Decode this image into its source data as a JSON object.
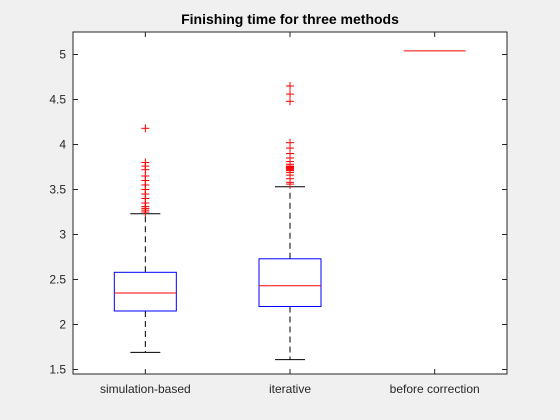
{
  "chart_data": {
    "type": "boxplot",
    "title": "Finishing time for three methods",
    "xlabel": "",
    "ylabel": "",
    "ylim": [
      1.45,
      5.25
    ],
    "grid": false,
    "yticks": [
      1.5,
      2,
      2.5,
      3,
      3.5,
      4,
      4.5,
      5
    ],
    "ytick_labels": [
      "1.5",
      "2",
      "2.5",
      "3",
      "3.5",
      "4",
      "4.5",
      "5"
    ],
    "categories": [
      "simulation-based",
      "iterative",
      "before correction"
    ],
    "boxes": [
      {
        "category": "simulation-based",
        "q1": 2.15,
        "median": 2.35,
        "q3": 2.58,
        "whisker_low": 1.69,
        "whisker_high": 3.23,
        "outliers": [
          3.25,
          3.27,
          3.29,
          3.31,
          3.35,
          3.4,
          3.45,
          3.5,
          3.55,
          3.6,
          3.65,
          3.72,
          3.76,
          3.8,
          4.18
        ]
      },
      {
        "category": "iterative",
        "q1": 2.2,
        "median": 2.43,
        "q3": 2.73,
        "whisker_low": 1.61,
        "whisker_high": 3.53,
        "outliers": [
          3.56,
          3.58,
          3.62,
          3.66,
          3.69,
          3.71,
          3.72,
          3.73,
          3.74,
          3.75,
          3.76,
          3.78,
          3.81,
          3.85,
          3.9,
          3.96,
          4.02,
          4.48,
          4.56,
          4.65
        ]
      },
      {
        "category": "before correction",
        "q1": 5.04,
        "median": 5.04,
        "q3": 5.04,
        "whisker_low": 5.04,
        "whisker_high": 5.04,
        "outliers": []
      }
    ],
    "colors": {
      "box": "#0000ff",
      "median": "#ff0000",
      "whisker": "#000000",
      "outlier": "#ff0000",
      "axes": "#262626",
      "background": "#ffffff",
      "figure": "#f0f0f0"
    }
  }
}
